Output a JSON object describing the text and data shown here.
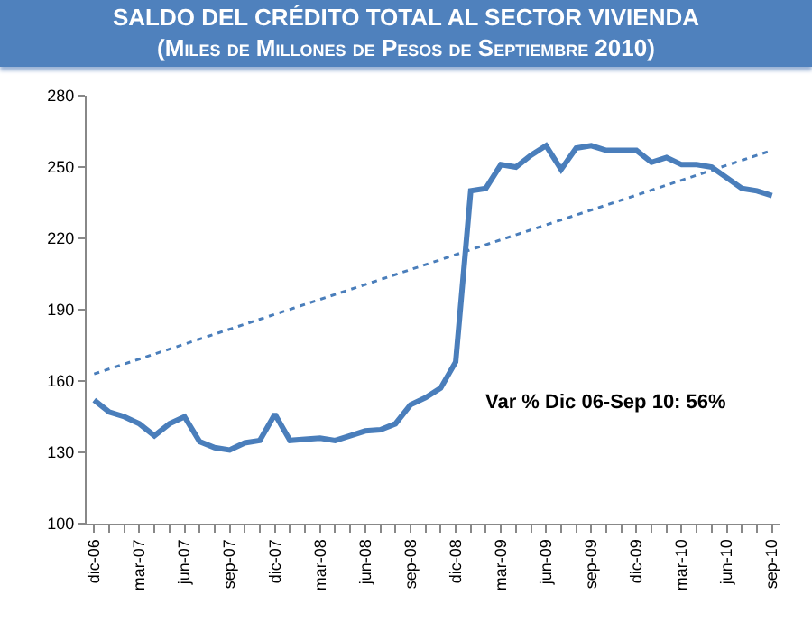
{
  "chart_data": {
    "type": "line",
    "title": "SALDO DEL CRÉDITO TOTAL AL SECTOR VIVIENDA",
    "subtitle": "(Miles de Millones de Pesos de Septiembre 2010)",
    "categories": [
      "dic-06",
      null,
      null,
      "mar-07",
      null,
      null,
      "jun-07",
      null,
      null,
      "sep-07",
      null,
      null,
      "dic-07",
      null,
      null,
      "mar-08",
      null,
      null,
      "jun-08",
      null,
      null,
      "sep-08",
      null,
      null,
      "dic-08",
      null,
      null,
      "mar-09",
      null,
      null,
      "jun-09",
      null,
      null,
      "sep-09",
      null,
      null,
      "dic-09",
      null,
      null,
      "mar-10",
      null,
      null,
      "jun-10",
      null,
      null,
      "sep-10"
    ],
    "series": [
      {
        "color": "#4a7ebb",
        "line_style": "solid",
        "values": [
          152,
          147,
          145,
          142,
          137,
          142,
          145,
          134.5,
          132,
          131,
          134,
          135,
          146,
          135,
          135.5,
          136,
          135,
          137,
          139,
          139.5,
          142,
          150,
          153,
          157,
          168,
          240,
          241,
          251,
          250,
          255,
          259,
          249,
          258,
          259,
          257,
          257,
          257,
          252,
          254,
          251,
          251,
          250,
          245.5,
          241,
          240,
          238
        ]
      },
      {
        "type": "line",
        "color": "#4a7ebb",
        "line_style": "dotted",
        "x": [
          "dic-06",
          "sep-10"
        ],
        "values": [
          163,
          257
        ]
      }
    ],
    "ylim": [
      100,
      280
    ],
    "yticks": [
      100,
      130,
      160,
      190,
      220,
      250,
      280
    ],
    "marker": "none",
    "annotations": [
      "Var % Dic 06-Sep 10: 56%"
    ]
  }
}
